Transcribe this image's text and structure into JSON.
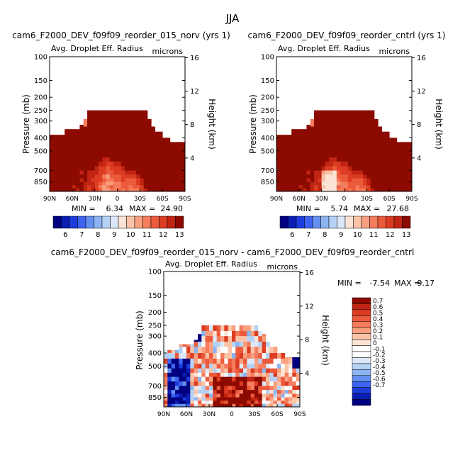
{
  "figure": {
    "season": "JJA"
  },
  "colors": {
    "blue_scale": [
      "#000080",
      "#0a1eb4",
      "#1e3cdc",
      "#3c64f0",
      "#6490f0",
      "#8cb4f0",
      "#b4d2f5",
      "#dce8fa"
    ],
    "red_scale": [
      "#fbe4d6",
      "#fbc4a8",
      "#f9a080",
      "#f57c5c",
      "#ec5a3c",
      "#dc3c22",
      "#c02412",
      "#8c0a00"
    ],
    "zero": "#ffffff"
  },
  "chart_data": [
    {
      "type": "heatmap",
      "panel": "top-left",
      "title": "cam6_F2000_DEV_f09f09_reorder_015_norv (yrs 1)",
      "variable": "Avg. Droplet Eff. Radius",
      "units": "microns",
      "ylabel": "Pressure (mb)",
      "ylabel_right": "Height (km)",
      "xticks": [
        "90N",
        "60N",
        "30N",
        "0",
        "30S",
        "60S",
        "90S"
      ],
      "xlim": [
        90,
        -90
      ],
      "yticks": [
        100,
        150,
        200,
        250,
        300,
        400,
        500,
        700,
        850
      ],
      "ylim": [
        1000,
        100
      ],
      "yticks_right": [
        4,
        8,
        12,
        16
      ],
      "min_label": "MIN =",
      "min": "6.34",
      "max_label": "MAX =",
      "max": "24.90",
      "levels": [
        "6",
        "7",
        "8",
        "9",
        "10",
        "11",
        "12",
        "13"
      ],
      "mode": "absolute"
    },
    {
      "type": "heatmap",
      "panel": "top-right",
      "title": "cam6_F2000_DEV_f09f09_reorder_cntrl (yrs 1)",
      "variable": "Avg. Droplet Eff. Radius",
      "units": "microns",
      "ylabel": "Pressure (mb)",
      "ylabel_right": "Height (km)",
      "xticks": [
        "90N",
        "60N",
        "30N",
        "0",
        "30S",
        "60S",
        "90S"
      ],
      "xlim": [
        90,
        -90
      ],
      "yticks": [
        100,
        150,
        200,
        250,
        300,
        400,
        500,
        700,
        850
      ],
      "ylim": [
        1000,
        100
      ],
      "yticks_right": [
        4,
        8,
        12,
        16
      ],
      "min_label": "MIN =",
      "min": "5.74",
      "max_label": "MAX =",
      "max": "27.68",
      "levels": [
        "6",
        "7",
        "8",
        "9",
        "10",
        "11",
        "12",
        "13"
      ],
      "mode": "absolute"
    },
    {
      "type": "heatmap",
      "panel": "bottom",
      "title": "cam6_F2000_DEV_f09f09_reorder_015_norv - cam6_F2000_DEV_f09f09_reorder_cntrl",
      "variable": "Avg. Droplet Eff. Radius",
      "units": "microns",
      "ylabel": "Pressure (mb)",
      "ylabel_right": "Height (km)",
      "xticks": [
        "90N",
        "60N",
        "30N",
        "0",
        "30S",
        "60S",
        "90S"
      ],
      "xlim": [
        90,
        -90
      ],
      "yticks": [
        100,
        150,
        200,
        250,
        300,
        400,
        500,
        700,
        850
      ],
      "ylim": [
        1000,
        100
      ],
      "yticks_right": [
        4,
        8,
        12,
        16
      ],
      "min_label": "MIN =",
      "min": "-7.54",
      "max_label": "MAX =",
      "max": "9.17",
      "levels": [
        "0.7",
        "0.6",
        "0.5",
        "0.4",
        "0.3",
        "0.2",
        "0.1",
        "0",
        "-0.1",
        "-0.2",
        "-0.3",
        "-0.4",
        "-0.5",
        "-0.6",
        "-0.7"
      ],
      "mode": "difference"
    }
  ]
}
